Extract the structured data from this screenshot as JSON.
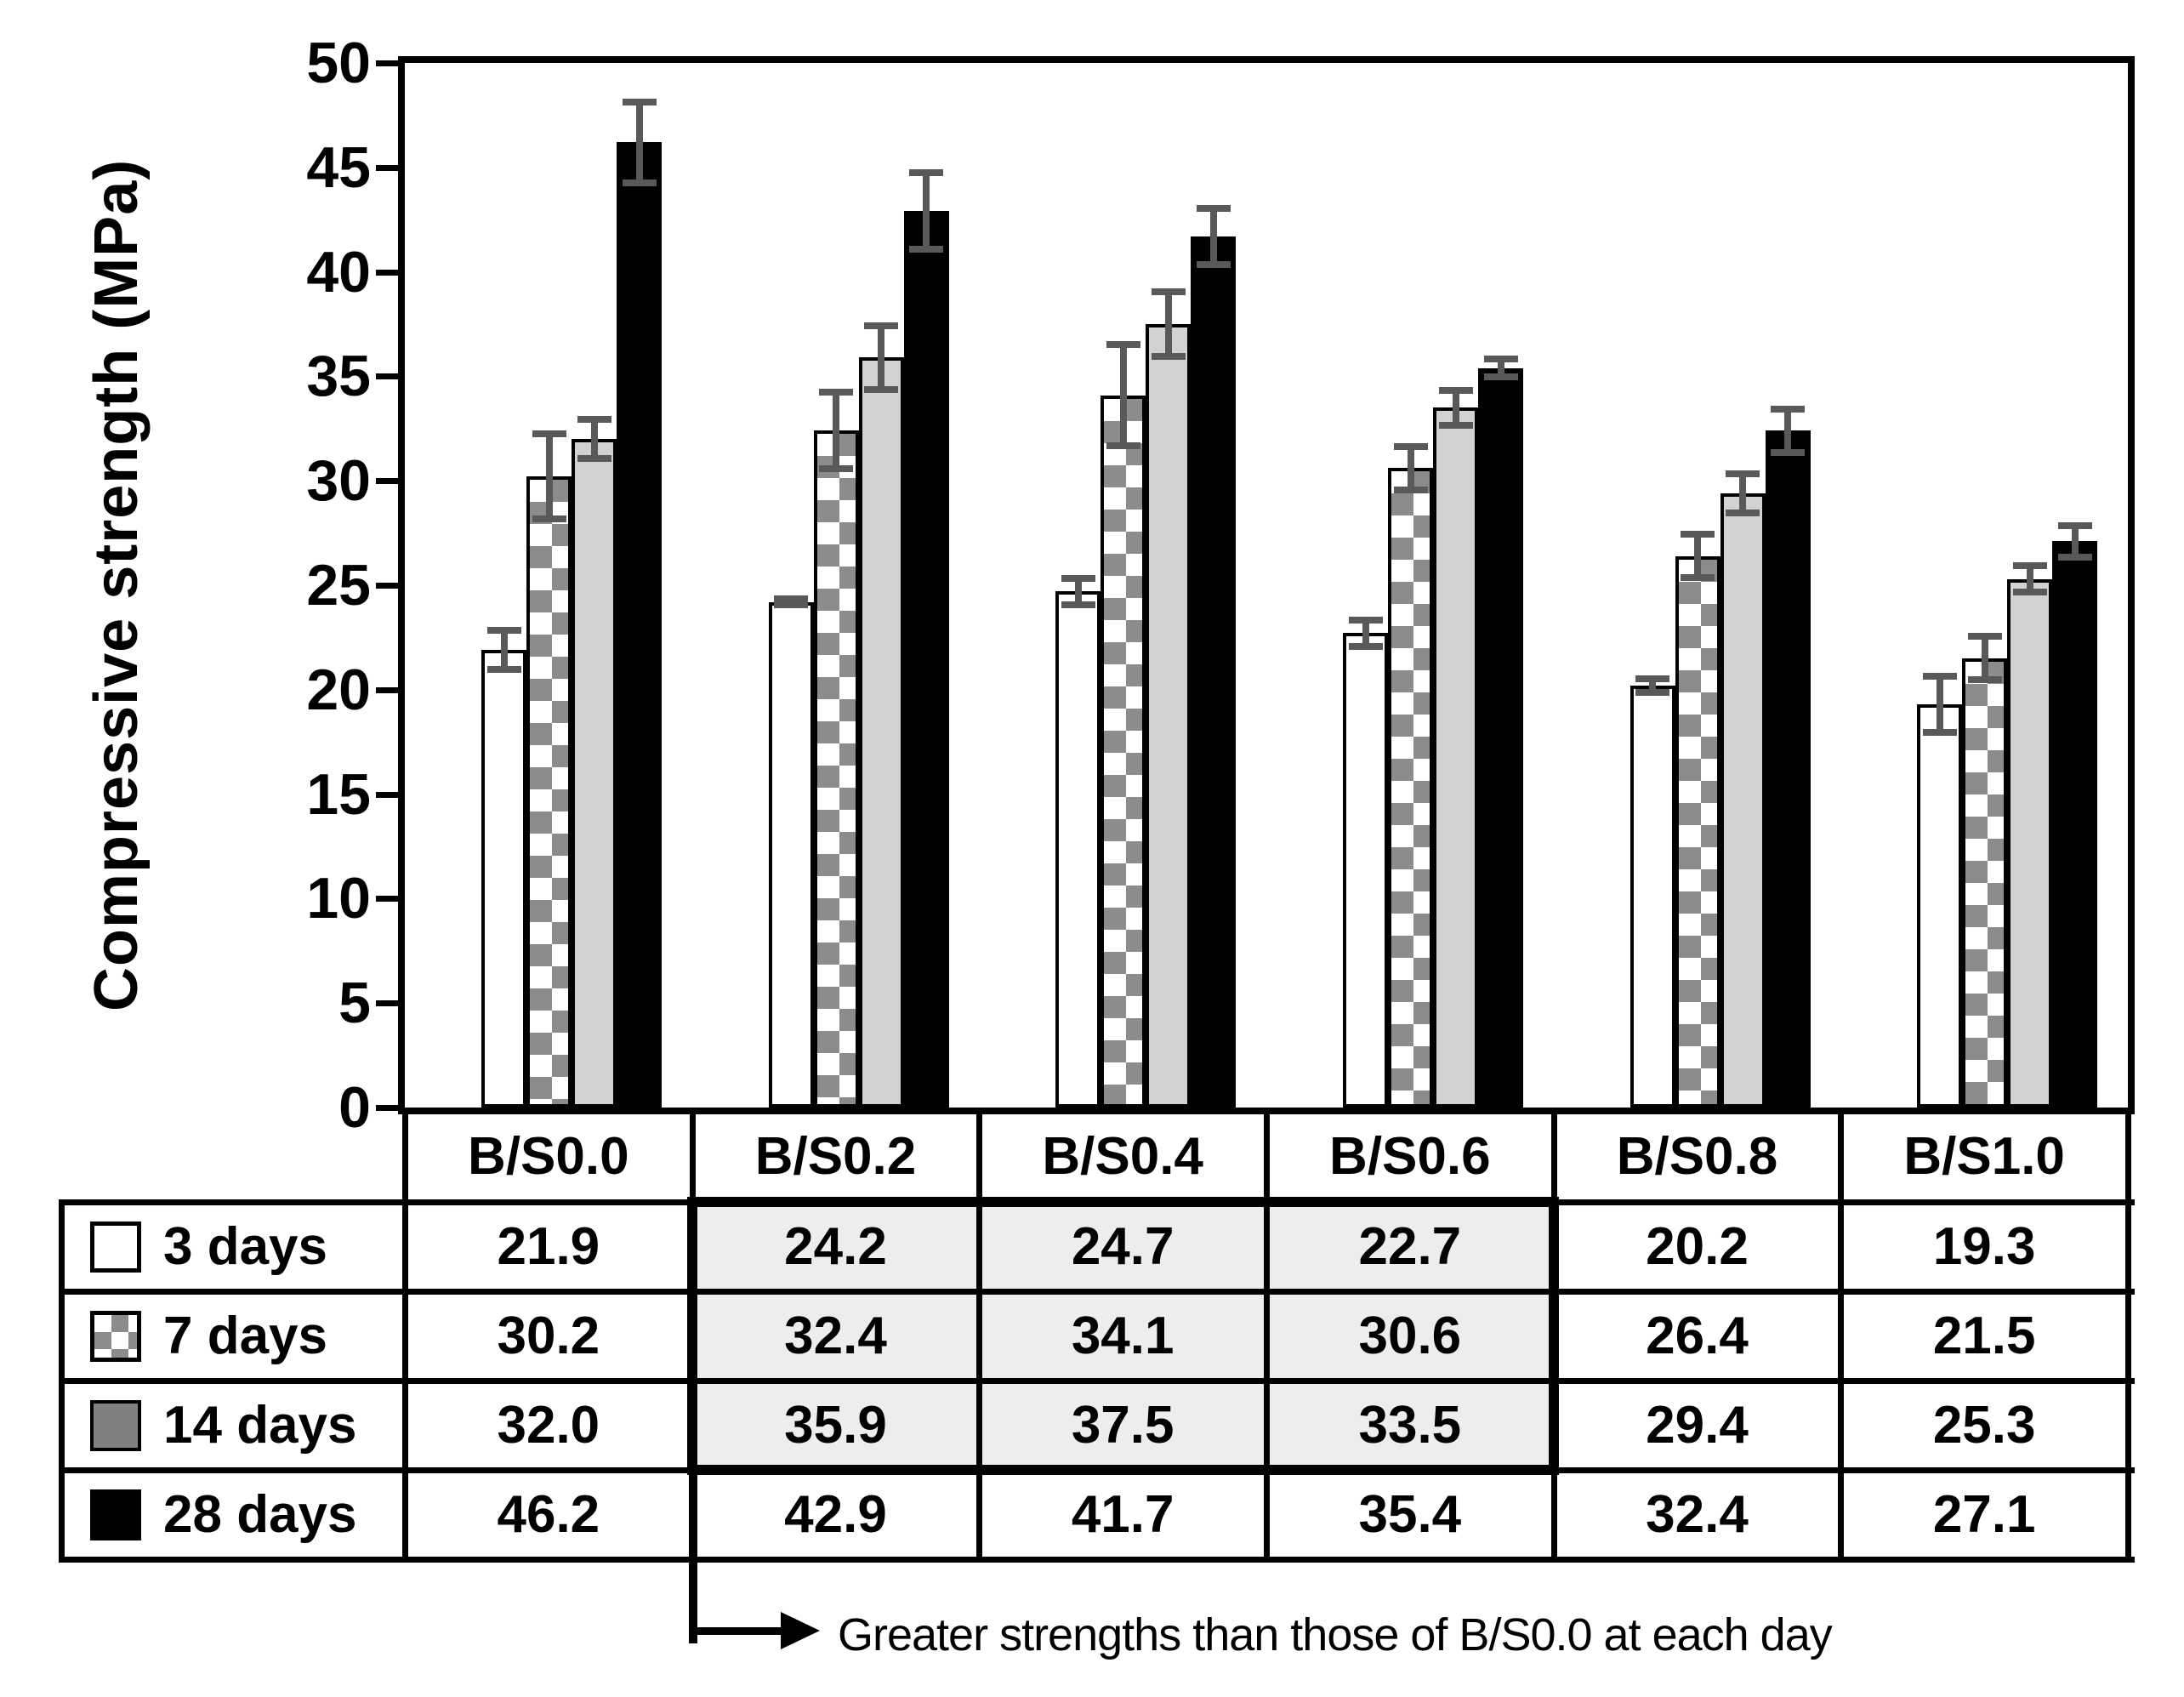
{
  "chart_data": {
    "type": "bar",
    "title": "",
    "ylabel": "Compressive strength (MPa)",
    "xlabel": "",
    "ylim": [
      0,
      50
    ],
    "yticks": [
      0,
      5,
      10,
      15,
      20,
      25,
      30,
      35,
      40,
      45,
      50
    ],
    "grid": false,
    "legend_position": "table-left",
    "categories": [
      "B/S0.0",
      "B/S0.2",
      "B/S0.4",
      "B/S0.6",
      "B/S0.8",
      "B/S1.0"
    ],
    "series": [
      {
        "name": "3 days",
        "pattern": "white",
        "values": [
          21.9,
          24.2,
          24.7,
          22.7,
          20.2,
          19.3
        ],
        "errors": [
          1.1,
          0.3,
          0.8,
          0.8,
          0.5,
          1.5
        ]
      },
      {
        "name": "7 days",
        "pattern": "checker",
        "values": [
          30.2,
          32.4,
          34.1,
          30.6,
          26.4,
          21.5
        ],
        "errors": [
          2.2,
          2.0,
          2.6,
          1.2,
          1.2,
          1.2
        ]
      },
      {
        "name": "14 days",
        "pattern": "gray",
        "values": [
          32.0,
          35.9,
          37.5,
          33.5,
          29.4,
          25.3
        ],
        "errors": [
          1.1,
          1.7,
          1.7,
          1.0,
          1.1,
          0.8
        ]
      },
      {
        "name": "28 days",
        "pattern": "black",
        "values": [
          46.2,
          42.9,
          41.7,
          35.4,
          32.4,
          27.1
        ],
        "errors": [
          2.1,
          2.0,
          1.5,
          0.6,
          1.2,
          0.9
        ]
      }
    ],
    "error_bars": true,
    "annotation": "Greater strengths than those of B/S0.0 at each day",
    "highlight": {
      "columns": [
        "B/S0.2",
        "B/S0.4",
        "B/S0.6"
      ],
      "rows": [
        "3 days",
        "7 days",
        "14 days"
      ]
    }
  },
  "table": {
    "columns": [
      "B/S0.0",
      "B/S0.2",
      "B/S0.4",
      "B/S0.6",
      "B/S0.8",
      "B/S1.0"
    ],
    "rows": [
      {
        "label": "3 days",
        "swatch": "white",
        "cells": [
          "21.9",
          "24.2",
          "24.7",
          "22.7",
          "20.2",
          "19.3"
        ]
      },
      {
        "label": "7 days",
        "swatch": "checker",
        "cells": [
          "30.2",
          "32.4",
          "34.1",
          "30.6",
          "26.4",
          "21.5"
        ]
      },
      {
        "label": "14 days",
        "swatch": "gray",
        "cells": [
          "32.0",
          "35.9",
          "37.5",
          "33.5",
          "29.4",
          "25.3"
        ]
      },
      {
        "label": "28 days",
        "swatch": "black",
        "cells": [
          "46.2",
          "42.9",
          "41.7",
          "35.4",
          "32.4",
          "27.1"
        ]
      }
    ]
  },
  "colors": {
    "checker_gray": "#8c8c8c",
    "bar_gray": "#d2d2d2",
    "legend_gray": "#7f7f7f",
    "error_bar": "#595959",
    "highlight_bg": "#ededed",
    "line": "#000000"
  }
}
